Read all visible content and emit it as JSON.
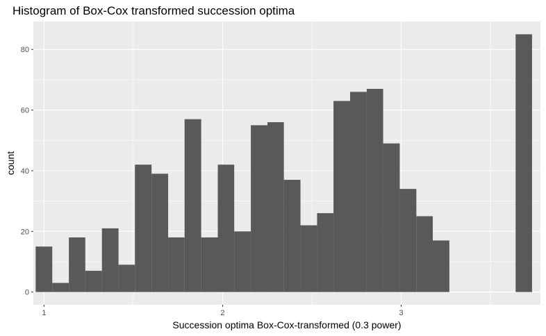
{
  "chart_data": {
    "type": "bar",
    "title": "Histogram of Box-Cox transformed succession optima",
    "xlabel": "Succession optima Box-Cox-transformed (0.3 power)",
    "ylabel": "count",
    "xlim": [
      0.94,
      3.78
    ],
    "ylim": [
      -4.2,
      89.2
    ],
    "xticks": [
      1,
      2,
      3
    ],
    "xtick_labels": [
      "1",
      "2",
      "3"
    ],
    "yticks": [
      0,
      20,
      40,
      60,
      80
    ],
    "ytick_labels": [
      "0",
      "20",
      "40",
      "60",
      "80"
    ],
    "grid": true,
    "bar_color": "#595959",
    "panel_color": "#ebebeb",
    "grid_color": "#ffffff",
    "bins": [
      {
        "x0": 0.953,
        "x1": 1.046,
        "count": 15
      },
      {
        "x0": 1.046,
        "x1": 1.139,
        "count": 3
      },
      {
        "x0": 1.139,
        "x1": 1.231,
        "count": 18
      },
      {
        "x0": 1.231,
        "x1": 1.324,
        "count": 7
      },
      {
        "x0": 1.324,
        "x1": 1.417,
        "count": 21
      },
      {
        "x0": 1.417,
        "x1": 1.509,
        "count": 9
      },
      {
        "x0": 1.509,
        "x1": 1.602,
        "count": 42
      },
      {
        "x0": 1.602,
        "x1": 1.695,
        "count": 39
      },
      {
        "x0": 1.695,
        "x1": 1.787,
        "count": 18
      },
      {
        "x0": 1.787,
        "x1": 1.88,
        "count": 57
      },
      {
        "x0": 1.88,
        "x1": 1.973,
        "count": 18
      },
      {
        "x0": 1.973,
        "x1": 2.065,
        "count": 42
      },
      {
        "x0": 2.065,
        "x1": 2.158,
        "count": 20
      },
      {
        "x0": 2.158,
        "x1": 2.251,
        "count": 55
      },
      {
        "x0": 2.251,
        "x1": 2.343,
        "count": 56
      },
      {
        "x0": 2.343,
        "x1": 2.436,
        "count": 37
      },
      {
        "x0": 2.436,
        "x1": 2.529,
        "count": 22
      },
      {
        "x0": 2.529,
        "x1": 2.621,
        "count": 26
      },
      {
        "x0": 2.621,
        "x1": 2.714,
        "count": 63
      },
      {
        "x0": 2.714,
        "x1": 2.807,
        "count": 66
      },
      {
        "x0": 2.807,
        "x1": 2.899,
        "count": 67
      },
      {
        "x0": 2.899,
        "x1": 2.992,
        "count": 49
      },
      {
        "x0": 2.992,
        "x1": 3.085,
        "count": 34
      },
      {
        "x0": 3.085,
        "x1": 3.177,
        "count": 25
      },
      {
        "x0": 3.177,
        "x1": 3.27,
        "count": 17
      },
      {
        "x0": 3.27,
        "x1": 3.363,
        "count": 0
      },
      {
        "x0": 3.363,
        "x1": 3.455,
        "count": 0
      },
      {
        "x0": 3.455,
        "x1": 3.548,
        "count": 0
      },
      {
        "x0": 3.548,
        "x1": 3.641,
        "count": 0
      },
      {
        "x0": 3.641,
        "x1": 3.733,
        "count": 85
      }
    ]
  }
}
